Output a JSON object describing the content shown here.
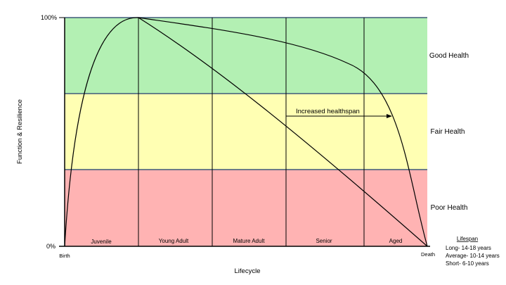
{
  "diagram": {
    "y_axis_title": "Function & Resilience",
    "x_axis_title": "Lifecycle",
    "y_top_label": "100%",
    "y_bottom_label": "0%",
    "x_start_label": "Birth",
    "x_end_label": "Death",
    "zones": [
      {
        "label": "Good Health",
        "color": "#b3f0b3"
      },
      {
        "label": "Fair Health",
        "color": "#ffffb3"
      },
      {
        "label": "Poor Health",
        "color": "#ffb3b3"
      }
    ],
    "zone_border_color": "#3f5a7a",
    "stages": [
      "Juvenile",
      "Young Adult",
      "Mature Adult",
      "Senior",
      "Aged"
    ],
    "annotation": "Increased healthspan",
    "lifespan": {
      "title": "Lifespan",
      "items": [
        "Long- 14-18 years",
        "Average- 10-14 years",
        "Short- 6-10 years"
      ]
    }
  }
}
